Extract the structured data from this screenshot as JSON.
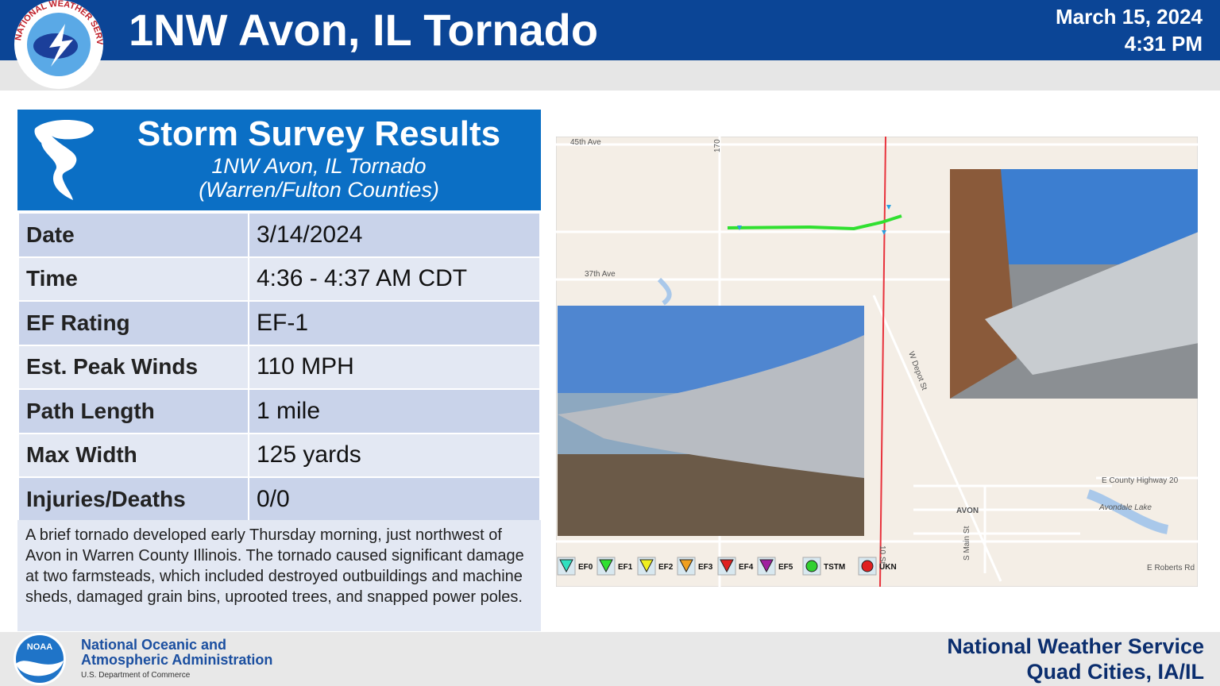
{
  "header": {
    "logo_text": "NATIONAL WEATHER SERVICE",
    "title": "1NW Avon, IL Tornado",
    "date": "March 15, 2024",
    "time": "4:31 PM"
  },
  "survey": {
    "title": "Storm Survey Results",
    "subtitle": "1NW Avon, IL Tornado",
    "counties": "(Warren/Fulton Counties)",
    "rows": [
      [
        "Date",
        "3/14/2024"
      ],
      [
        "Time",
        "4:36 - 4:37 AM CDT"
      ],
      [
        "EF Rating",
        "EF-1"
      ],
      [
        "Est. Peak Winds",
        "110 MPH"
      ],
      [
        "Path Length",
        "1 mile"
      ],
      [
        "Max Width",
        "125 yards"
      ],
      [
        "Injuries/Deaths",
        "0/0"
      ]
    ],
    "description": "A brief tornado developed early Thursday morning, just northwest of Avon in Warren County Illinois. The tornado caused significant damage at two farmsteads, which included destroyed outbuildings and machine sheds, damaged grain bins, uprooted trees, and snapped power poles."
  },
  "map": {
    "labels": [
      "45th Ave",
      "170",
      "37th Ave",
      "W Depot St",
      "E County Highway 20",
      "AVON",
      "Avondale Lake",
      "S Main St",
      "E Roberts Rd",
      "10 St"
    ],
    "legend": [
      "EF0",
      "EF1",
      "EF2",
      "EF3",
      "EF4",
      "EF5",
      "TSTM",
      "UKN"
    ]
  },
  "footer": {
    "noaa_logo": "NOAA",
    "org_line1": "National Oceanic and",
    "org_line2": "Atmospheric Administration",
    "dept": "U.S. Department of Commerce",
    "office_line1": "National Weather Service",
    "office_line2": "Quad Cities, IA/IL"
  }
}
